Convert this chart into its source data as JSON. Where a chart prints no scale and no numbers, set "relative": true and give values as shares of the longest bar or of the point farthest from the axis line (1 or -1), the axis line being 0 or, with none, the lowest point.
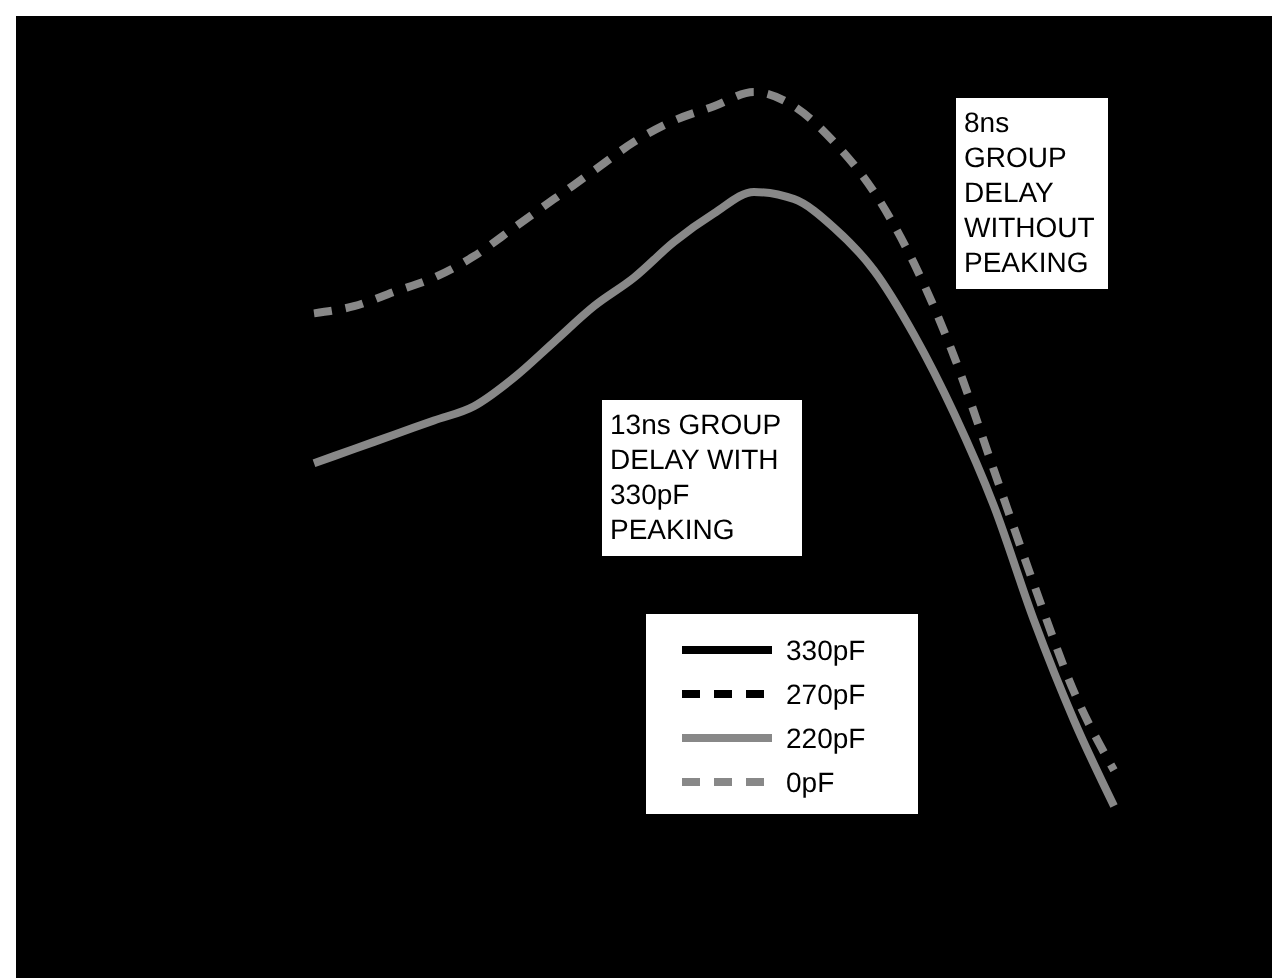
{
  "chart_data": {
    "type": "line",
    "relative": true,
    "categories": [
      null,
      null,
      null,
      null,
      null,
      null,
      null,
      null,
      null,
      null,
      null,
      null,
      null,
      null,
      null,
      null,
      null,
      null,
      null,
      null,
      null
    ],
    "series": [
      {
        "name": "330pF",
        "color": "#000000",
        "line_style": "solid",
        "values": [
          null,
          null,
          null,
          null,
          null,
          null,
          null,
          null,
          null,
          null,
          null,
          null,
          null,
          null,
          null,
          null,
          null,
          null,
          null,
          null,
          null
        ]
      },
      {
        "name": "270pF",
        "color": "#000000",
        "line_style": "dashed",
        "values": [
          null,
          null,
          null,
          null,
          null,
          null,
          null,
          null,
          null,
          null,
          null,
          null,
          null,
          null,
          null,
          null,
          null,
          null,
          null,
          null,
          null
        ]
      },
      {
        "name": "220pF",
        "color": "#888888",
        "line_style": "solid",
        "values": [
          0.48,
          0.5,
          0.52,
          0.54,
          0.56,
          0.6,
          0.65,
          0.7,
          0.74,
          0.79,
          0.83,
          0.86,
          0.85,
          0.81,
          0.75,
          0.66,
          0.55,
          0.42,
          0.26,
          0.12,
          0
        ]
      },
      {
        "name": "0pF",
        "color": "#888888",
        "line_style": "dashed",
        "values": [
          0.69,
          0.7,
          0.72,
          0.74,
          0.77,
          0.81,
          0.85,
          0.89,
          0.93,
          0.96,
          0.98,
          1,
          0.98,
          0.93,
          0.86,
          0.76,
          0.63,
          0.47,
          0.31,
          0.16,
          0.05
        ]
      }
    ],
    "annotations": [
      "8ns GROUP DELAY WITHOUT PEAKING",
      "13ns GROUP DELAY WITH 330pF PEAKING"
    ],
    "legend": "bottom",
    "grid": false
  }
}
